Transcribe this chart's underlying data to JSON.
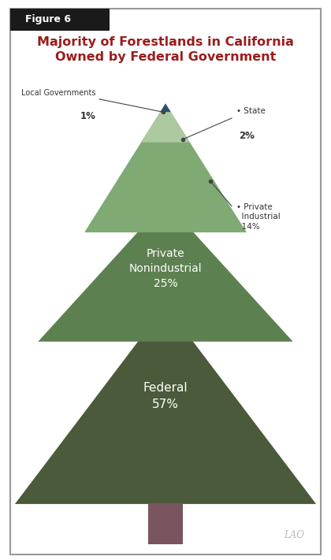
{
  "title_line1": "Majority of Forestlands in California",
  "title_line2": "Owned by Federal Government",
  "figure_label": "Figure 6",
  "title_color": "#9b1c1c",
  "bg_color": "#ffffff",
  "border_color": "#aaaaaa",
  "colors": {
    "tip": "#2e5070",
    "state": "#adc9a0",
    "private_industrial": "#80aa74",
    "private_nonindustrial": "#5d8050",
    "federal": "#4a5a3a",
    "trunk": "#7a5560"
  },
  "white": "#ffffff",
  "annotation_color": "#444444",
  "lao_color": "#bbbbbb",
  "fig_width": 4.2,
  "fig_height": 7.11,
  "dpi": 100
}
